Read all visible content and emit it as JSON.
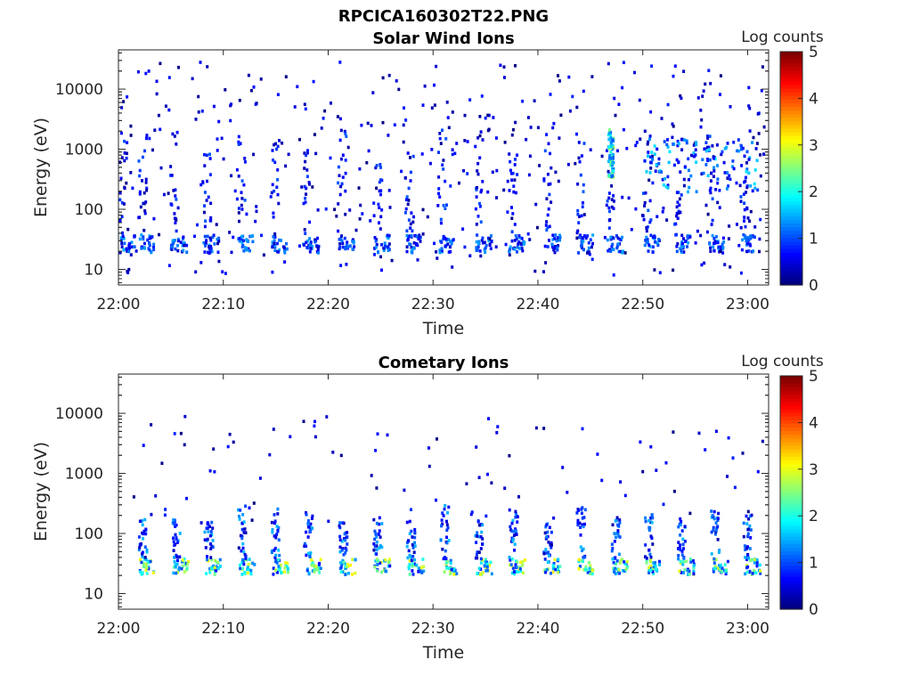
{
  "figure": {
    "title": "RPCICA160302T22.PNG"
  },
  "chart_data": [
    {
      "type": "heatmap",
      "title": "Solar Wind Ions",
      "xlabel": "Time",
      "ylabel": "Energy (eV)",
      "x_tick_labels": [
        "22:00",
        "22:10",
        "22:20",
        "22:30",
        "22:40",
        "22:50",
        "23:00"
      ],
      "y_tick_labels": [
        "10",
        "100",
        "1000",
        "10000"
      ],
      "y_scale": "log",
      "ylim": [
        5.5,
        45000
      ],
      "xlim": [
        "22:00",
        "23:02"
      ],
      "colorbar": {
        "label": "Log counts",
        "range": [
          0,
          5
        ],
        "tick_labels": [
          "0",
          "1",
          "2",
          "3",
          "4",
          "5"
        ],
        "colormap": "jet"
      },
      "sweeps_minutes": [
        0.3,
        2.2,
        5.2,
        8.3,
        11.6,
        14.8,
        17.8,
        21.2,
        24.6,
        27.6,
        30.8,
        34.3,
        37.4,
        40.8,
        44.0,
        46.8,
        50.3,
        53.3,
        56.4,
        59.6
      ],
      "bright_band_energy_eV": [
        20,
        40
      ]
    },
    {
      "type": "heatmap",
      "title": "Cometary Ions",
      "xlabel": "Time",
      "ylabel": "Energy (eV)",
      "x_tick_labels": [
        "22:00",
        "22:10",
        "22:20",
        "22:30",
        "22:40",
        "22:50",
        "23:00"
      ],
      "y_tick_labels": [
        "10",
        "100",
        "1000",
        "10000"
      ],
      "y_scale": "log",
      "ylim": [
        5.5,
        45000
      ],
      "xlim": [
        "22:00",
        "23:02"
      ],
      "colorbar": {
        "label": "Log counts",
        "range": [
          0,
          5
        ],
        "tick_labels": [
          "0",
          "1",
          "2",
          "3",
          "4",
          "5"
        ],
        "colormap": "jet"
      },
      "sweeps_minutes": [
        2.2,
        5.4,
        8.5,
        11.7,
        14.9,
        18.0,
        21.3,
        24.6,
        27.8,
        31.0,
        34.3,
        37.5,
        40.8,
        44.0,
        47.3,
        50.5,
        53.6,
        56.8,
        59.9
      ],
      "bright_band_energy_eV": [
        22,
        40
      ]
    }
  ]
}
